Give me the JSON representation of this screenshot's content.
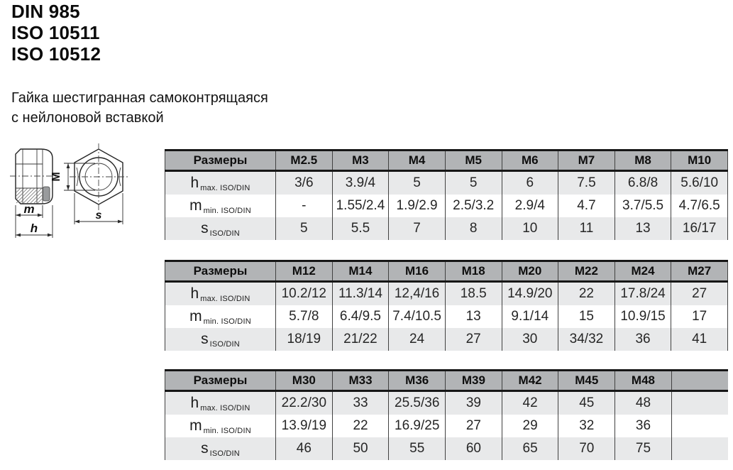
{
  "header": {
    "standards": [
      "DIN 985",
      "ISO 10511",
      "ISO 10512"
    ],
    "subtitle": [
      "Гайка шестигранная самоконтрящаяся",
      "с нейлоновой вставкой"
    ]
  },
  "drawing": {
    "labels": {
      "m": "m",
      "h": "h",
      "M": "M",
      "s": "s"
    }
  },
  "row_labels": {
    "h": {
      "main": "h",
      "sub": "max. ISO/DIN"
    },
    "m": {
      "main": "m",
      "sub": "min. ISO/DIN"
    },
    "s": {
      "main": "s",
      "sub": "ISO/DIN"
    }
  },
  "tables": [
    {
      "header_label": "Размеры",
      "columns": [
        "M2.5",
        "M3",
        "M4",
        "M5",
        "M6",
        "M7",
        "M8",
        "M10"
      ],
      "rows": {
        "h": [
          "3/6",
          "3.9/4",
          "5",
          "5",
          "6",
          "7.5",
          "6.8/8",
          "5.6/10"
        ],
        "m": [
          "-",
          "1.55/2.4",
          "1.9/2.9",
          "2.5/3.2",
          "2.9/4",
          "4.7",
          "3.7/5.5",
          "4.7/6.5"
        ],
        "s": [
          "5",
          "5.5",
          "7",
          "8",
          "10",
          "11",
          "13",
          "16/17"
        ]
      }
    },
    {
      "header_label": "Размеры",
      "columns": [
        "M12",
        "M14",
        "M16",
        "M18",
        "M20",
        "M22",
        "M24",
        "M27"
      ],
      "rows": {
        "h": [
          "10.2/12",
          "11.3/14",
          "12,4/16",
          "18.5",
          "14.9/20",
          "22",
          "17.8/24",
          "27"
        ],
        "m": [
          "5.7/8",
          "6.4/9.5",
          "7.4/10.5",
          "13",
          "9.1/14",
          "15",
          "10.9/15",
          "17"
        ],
        "s": [
          "18/19",
          "21/22",
          "24",
          "27",
          "30",
          "34/32",
          "36",
          "41"
        ]
      }
    },
    {
      "header_label": "Размеры",
      "columns": [
        "M30",
        "M33",
        "M36",
        "M39",
        "M42",
        "M45",
        "M48",
        ""
      ],
      "rows": {
        "h": [
          "22.2/30",
          "33",
          "25.5/36",
          "39",
          "42",
          "45",
          "48",
          ""
        ],
        "m": [
          "13.9/19",
          "22",
          "16.9/25",
          "27",
          "29",
          "32",
          "36",
          ""
        ],
        "s": [
          "46",
          "50",
          "55",
          "60",
          "65",
          "70",
          "75",
          ""
        ]
      }
    }
  ],
  "colors": {
    "header_bg": "#b2b4b6",
    "row_alt_bg": "#e8e9ea",
    "border_heavy": "#161616",
    "border_light": "#414141"
  }
}
